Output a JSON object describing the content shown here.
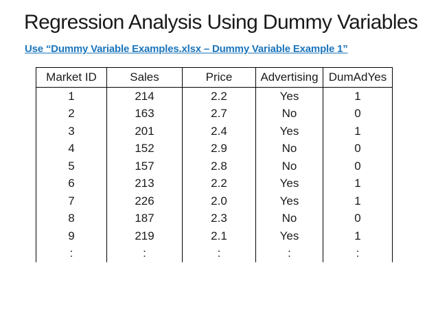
{
  "slide": {
    "title": "Regression Analysis Using Dummy Variables",
    "subtitle": "Use “Dummy Variable Examples.xlsx – Dummy Variable Example 1”"
  },
  "colors": {
    "background": "#ffffff",
    "title_text": "#1a1a1a",
    "subtitle_text": "#1b75bc",
    "table_text": "#1a1a1a",
    "table_border": "#000000"
  },
  "table": {
    "columns": [
      "Market ID",
      "Sales",
      "Price",
      "Advertising",
      "DumAdYes"
    ],
    "rows": [
      [
        "1",
        "214",
        "2.2",
        "Yes",
        "1"
      ],
      [
        "2",
        "163",
        "2.7",
        "No",
        "0"
      ],
      [
        "3",
        "201",
        "2.4",
        "Yes",
        "1"
      ],
      [
        "4",
        "152",
        "2.9",
        "No",
        "0"
      ],
      [
        "5",
        "157",
        "2.8",
        "No",
        "0"
      ],
      [
        "6",
        "213",
        "2.2",
        "Yes",
        "1"
      ],
      [
        "7",
        "226",
        "2.0",
        "Yes",
        "1"
      ],
      [
        "8",
        "187",
        "2.3",
        "No",
        "0"
      ],
      [
        "9",
        "219",
        "2.1",
        "Yes",
        "1"
      ],
      [
        ":",
        ":",
        ":",
        ":",
        ":"
      ]
    ],
    "continuation_symbol": ":"
  }
}
